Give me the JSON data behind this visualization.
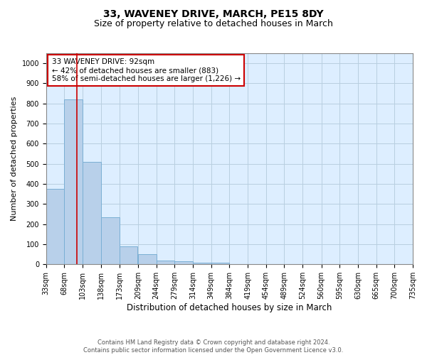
{
  "title": "33, WAVENEY DRIVE, MARCH, PE15 8DY",
  "subtitle": "Size of property relative to detached houses in March",
  "xlabel": "Distribution of detached houses by size in March",
  "ylabel": "Number of detached properties",
  "bar_values": [
    375,
    820,
    510,
    235,
    90,
    50,
    20,
    15,
    10,
    8,
    0,
    0,
    0,
    0,
    0,
    0,
    0,
    0,
    0,
    0
  ],
  "bin_starts": [
    33,
    68,
    103,
    138,
    173,
    209,
    244,
    279,
    314,
    349,
    384,
    419,
    454,
    489,
    524,
    560,
    595,
    630,
    665,
    700
  ],
  "bin_width": 35,
  "xlim_left": 33,
  "xlim_right": 735,
  "xtick_positions": [
    33,
    68,
    103,
    138,
    173,
    209,
    244,
    279,
    314,
    349,
    384,
    419,
    454,
    489,
    524,
    560,
    595,
    630,
    665,
    700,
    735
  ],
  "xtick_labels": [
    "33sqm",
    "68sqm",
    "103sqm",
    "138sqm",
    "173sqm",
    "209sqm",
    "244sqm",
    "279sqm",
    "314sqm",
    "349sqm",
    "384sqm",
    "419sqm",
    "454sqm",
    "489sqm",
    "524sqm",
    "560sqm",
    "595sqm",
    "630sqm",
    "665sqm",
    "700sqm",
    "735sqm"
  ],
  "bar_color": "#b8d0ea",
  "bar_edgecolor": "#7aafd4",
  "vline_x": 92,
  "vline_color": "#cc0000",
  "annotation_text": "33 WAVENEY DRIVE: 92sqm\n← 42% of detached houses are smaller (883)\n58% of semi-detached houses are larger (1,226) →",
  "annotation_box_edgecolor": "#cc0000",
  "annotation_box_facecolor": "#ffffff",
  "ylim": [
    0,
    1050
  ],
  "yticks": [
    0,
    100,
    200,
    300,
    400,
    500,
    600,
    700,
    800,
    900,
    1000
  ],
  "background_color": "#ffffff",
  "axes_facecolor": "#ddeeff",
  "grid_color": "#b8cfe0",
  "footer": "Contains HM Land Registry data © Crown copyright and database right 2024.\nContains public sector information licensed under the Open Government Licence v3.0.",
  "title_fontsize": 10,
  "subtitle_fontsize": 9,
  "xlabel_fontsize": 8.5,
  "ylabel_fontsize": 8,
  "tick_fontsize": 7,
  "annotation_fontsize": 7.5,
  "footer_fontsize": 6
}
